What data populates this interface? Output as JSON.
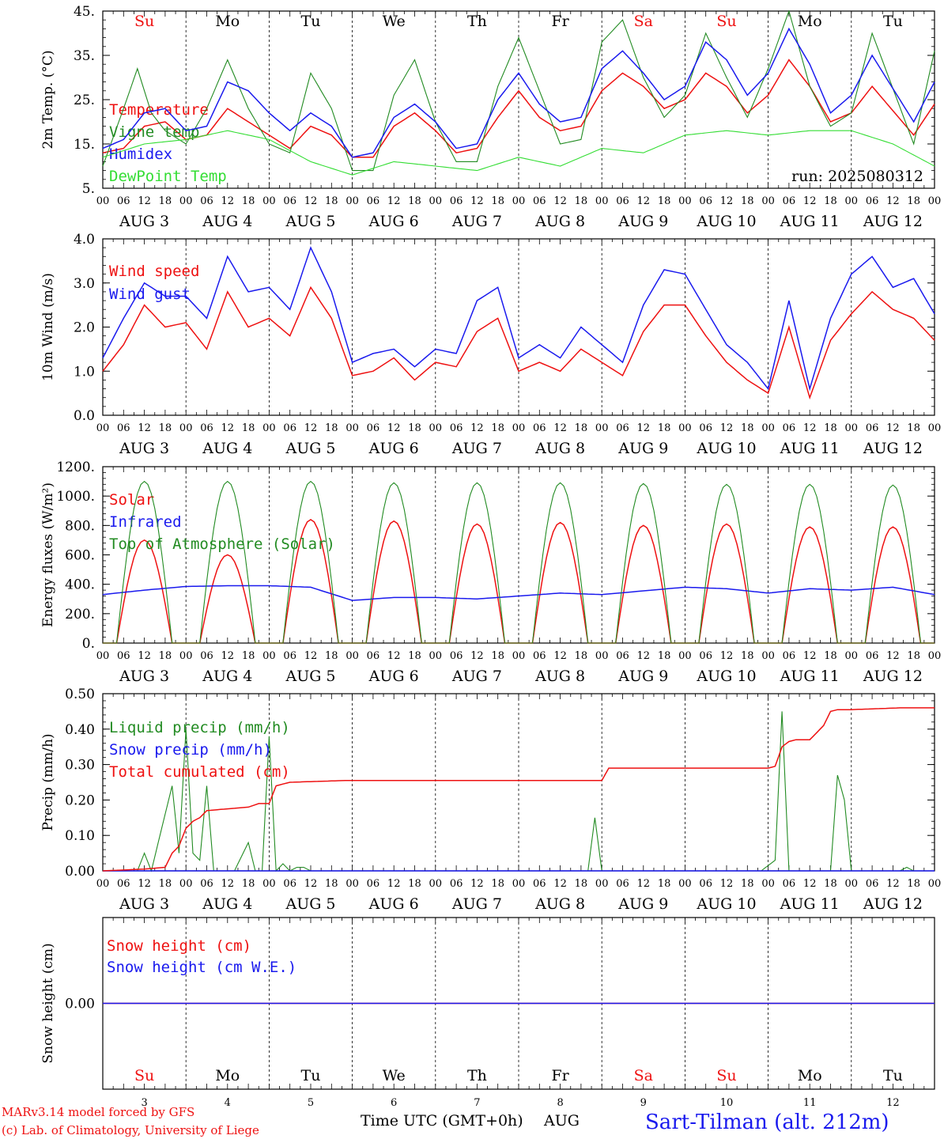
{
  "footer": {
    "model_line": "MARv3.14 model forced by GFS",
    "lab_line": "(c) Lab. of Climatology, University of Liege",
    "time_axis_label": "Time UTC (GMT+0h)",
    "month_label": "AUG",
    "station": "Sart-Tilman (alt. 212m)"
  },
  "colors": {
    "red": "#ee1111",
    "green": "#228b22",
    "blue": "#1a1aee",
    "lightgreen": "#33dd33",
    "black": "#000000"
  },
  "days": {
    "weekday": [
      "Su",
      "Mo",
      "Tu",
      "We",
      "Th",
      "Fr",
      "Sa",
      "Su",
      "Mo",
      "Tu"
    ],
    "weekend_flags": [
      true,
      false,
      false,
      false,
      false,
      false,
      true,
      true,
      false,
      false
    ],
    "date_labels": [
      "AUG  3",
      "AUG  4",
      "AUG  5",
      "AUG  6",
      "AUG  7",
      "AUG  8",
      "AUG  9",
      "AUG 10",
      "AUG 11",
      "AUG 12"
    ],
    "day_numbers": [
      "3",
      "4",
      "5",
      "6",
      "7",
      "8",
      "9",
      "10",
      "11",
      "12"
    ],
    "hour_ticks": [
      "00",
      "06",
      "12",
      "18"
    ]
  },
  "chart_data": [
    {
      "type": "line",
      "ylabel": "2m Temp. (°C)",
      "ylim": [
        5,
        45
      ],
      "yticks": [
        "5.",
        "15.",
        "25.",
        "35.",
        "45."
      ],
      "annotation": "run: 2025080312",
      "x_unit": "hours since AUG 3 00 UTC",
      "series": [
        {
          "name": "Temperature",
          "color": "red",
          "x": [
            0,
            6,
            12,
            18,
            24,
            30,
            36,
            42,
            48,
            54,
            60,
            66,
            72,
            78,
            84,
            90,
            96,
            102,
            108,
            114,
            120,
            126,
            132,
            138,
            144,
            150,
            156,
            162,
            168,
            174,
            180,
            186,
            192,
            198,
            204,
            210,
            216,
            222,
            234,
            240
          ],
          "values": [
            13,
            14,
            19,
            20,
            16,
            17,
            23,
            20,
            17,
            14,
            19,
            17,
            12,
            12,
            19,
            22,
            18,
            13,
            14,
            21,
            27,
            21,
            18,
            19,
            27,
            31,
            28,
            23,
            25,
            31,
            28,
            22,
            26,
            34,
            28,
            20,
            22,
            28,
            17,
            24
          ]
        },
        {
          "name": "Vigne temp",
          "color": "green",
          "x": [
            0,
            6,
            10,
            14,
            18,
            24,
            30,
            36,
            42,
            48,
            54,
            60,
            66,
            72,
            78,
            84,
            90,
            96,
            102,
            108,
            114,
            120,
            126,
            132,
            138,
            144,
            150,
            156,
            162,
            168,
            174,
            180,
            186,
            192,
            198,
            204,
            210,
            216,
            222,
            234,
            240
          ],
          "values": [
            10,
            23,
            32,
            22,
            18,
            15,
            23,
            34,
            23,
            15,
            13,
            31,
            23,
            9,
            9,
            26,
            34,
            20,
            11,
            11,
            28,
            39,
            27,
            15,
            16,
            38,
            43,
            30,
            21,
            26,
            40,
            30,
            21,
            32,
            45,
            28,
            19,
            22,
            40,
            15,
            36
          ]
        },
        {
          "name": "Humidex",
          "color": "blue",
          "x": [
            0,
            6,
            12,
            18,
            24,
            30,
            36,
            42,
            48,
            54,
            60,
            66,
            72,
            78,
            84,
            90,
            96,
            102,
            108,
            114,
            120,
            126,
            132,
            138,
            144,
            150,
            156,
            162,
            168,
            174,
            180,
            186,
            192,
            198,
            204,
            210,
            216,
            222,
            234,
            240
          ],
          "values": [
            14,
            16,
            22,
            23,
            18,
            19,
            29,
            27,
            22,
            18,
            22,
            19,
            12,
            13,
            21,
            24,
            20,
            14,
            15,
            25,
            31,
            24,
            20,
            21,
            32,
            36,
            31,
            25,
            28,
            38,
            34,
            26,
            31,
            41,
            33,
            22,
            26,
            35,
            20,
            29
          ]
        },
        {
          "name": "DewPoint Temp",
          "color": "lightgreen",
          "x": [
            0,
            12,
            24,
            36,
            48,
            60,
            72,
            84,
            96,
            108,
            120,
            132,
            144,
            156,
            168,
            180,
            192,
            204,
            216,
            228,
            240
          ],
          "values": [
            12,
            15,
            16,
            18,
            16,
            11,
            8,
            11,
            10,
            9,
            12,
            10,
            14,
            13,
            17,
            18,
            17,
            18,
            18,
            15,
            10
          ]
        }
      ]
    },
    {
      "type": "line",
      "ylabel": "10m Wind (m/s)",
      "ylim": [
        0,
        4
      ],
      "yticks": [
        "0.0",
        "1.0",
        "2.0",
        "3.0",
        "4.0"
      ],
      "x_unit": "hours since AUG 3 00 UTC",
      "series": [
        {
          "name": "Wind speed",
          "color": "red",
          "x": [
            0,
            6,
            12,
            18,
            24,
            30,
            36,
            42,
            48,
            54,
            60,
            66,
            72,
            78,
            84,
            90,
            96,
            102,
            108,
            114,
            120,
            126,
            132,
            138,
            144,
            150,
            156,
            162,
            168,
            174,
            180,
            186,
            192,
            198,
            204,
            210,
            216,
            222,
            228,
            234,
            240
          ],
          "values": [
            1.0,
            1.6,
            2.5,
            2.0,
            2.1,
            1.5,
            2.8,
            2.0,
            2.2,
            1.8,
            2.9,
            2.2,
            0.9,
            1.0,
            1.3,
            0.8,
            1.2,
            1.1,
            1.9,
            2.2,
            1.0,
            1.2,
            1.0,
            1.5,
            1.2,
            0.9,
            1.9,
            2.5,
            2.5,
            1.8,
            1.2,
            0.8,
            0.5,
            2.0,
            0.4,
            1.7,
            2.3,
            2.8,
            2.4,
            2.2,
            1.7
          ]
        },
        {
          "name": "Wind gust",
          "color": "blue",
          "x": [
            0,
            6,
            12,
            18,
            24,
            30,
            36,
            42,
            48,
            54,
            60,
            66,
            72,
            78,
            84,
            90,
            96,
            102,
            108,
            114,
            120,
            126,
            132,
            138,
            144,
            150,
            156,
            162,
            168,
            174,
            180,
            186,
            192,
            198,
            204,
            210,
            216,
            222,
            228,
            234,
            240
          ],
          "values": [
            1.3,
            2.2,
            3.0,
            2.7,
            2.7,
            2.2,
            3.6,
            2.8,
            2.9,
            2.4,
            3.8,
            2.8,
            1.2,
            1.4,
            1.5,
            1.1,
            1.5,
            1.4,
            2.6,
            2.9,
            1.3,
            1.6,
            1.3,
            2.0,
            1.6,
            1.2,
            2.5,
            3.3,
            3.2,
            2.4,
            1.6,
            1.2,
            0.6,
            2.6,
            0.6,
            2.2,
            3.2,
            3.6,
            2.9,
            3.1,
            2.3
          ]
        }
      ]
    },
    {
      "type": "line",
      "ylabel": "Energy fluxes (W/m²)",
      "ylim": [
        0,
        1200
      ],
      "yticks": [
        "0.",
        "200.",
        "400.",
        "600.",
        "800.",
        "1000.",
        "1200."
      ],
      "x_unit": "hours since AUG 3 00 UTC",
      "day_cycle": {
        "sunrise_hour": 4,
        "sunset_hour": 20
      },
      "series": [
        {
          "name": "Solar",
          "color": "red",
          "daily_peak": [
            700,
            600,
            840,
            830,
            810,
            820,
            800,
            810,
            790,
            790
          ]
        },
        {
          "name": "Infrared",
          "color": "blue",
          "x": [
            0,
            12,
            24,
            36,
            48,
            60,
            72,
            84,
            96,
            108,
            120,
            132,
            144,
            156,
            168,
            180,
            192,
            204,
            216,
            228,
            240
          ],
          "values": [
            330,
            360,
            385,
            390,
            390,
            380,
            290,
            310,
            310,
            300,
            320,
            340,
            330,
            355,
            380,
            370,
            340,
            370,
            360,
            380,
            330
          ]
        },
        {
          "name": "Top of Atmosphere (Solar)",
          "color": "green",
          "daily_peak": [
            1100,
            1100,
            1100,
            1090,
            1090,
            1090,
            1085,
            1080,
            1080,
            1075
          ]
        }
      ]
    },
    {
      "type": "line",
      "ylabel": "Precip (mm/h)",
      "ylim": [
        0,
        0.5
      ],
      "yticks": [
        "0.00",
        "0.10",
        "0.20",
        "0.30",
        "0.40",
        "0.50"
      ],
      "x_unit": "hours since AUG 3 00 UTC",
      "series": [
        {
          "name": "Liquid precip (mm/h)",
          "color": "green",
          "x": [
            0,
            10,
            12,
            14,
            20,
            22,
            24,
            26,
            28,
            30,
            32,
            34,
            36,
            38,
            42,
            44,
            46,
            48,
            50,
            52,
            54,
            56,
            58,
            60,
            62,
            100,
            140,
            142,
            144,
            146,
            148,
            190,
            194,
            196,
            198,
            200,
            210,
            212,
            214,
            216,
            218,
            230,
            232,
            234,
            240
          ],
          "values": [
            0,
            0,
            0.05,
            0,
            0.24,
            0.05,
            0.4,
            0.05,
            0.03,
            0.24,
            0,
            0,
            0,
            0,
            0.08,
            0,
            0,
            0.38,
            0,
            0.02,
            0,
            0.01,
            0.01,
            0,
            0,
            0,
            0,
            0.15,
            0,
            0,
            0,
            0,
            0.03,
            0.45,
            0,
            0,
            0,
            0.27,
            0.2,
            0,
            0,
            0,
            0.01,
            0,
            0
          ]
        },
        {
          "name": "Snow precip (mm/h)",
          "color": "blue",
          "x": [
            0,
            240
          ],
          "values": [
            0,
            0
          ]
        },
        {
          "name": "Total cumulated (cm)",
          "color": "red",
          "x": [
            0,
            12,
            18,
            20,
            22,
            24,
            26,
            28,
            30,
            36,
            42,
            45,
            48,
            50,
            54,
            70,
            110,
            144,
            146,
            192,
            194,
            196,
            198,
            200,
            204,
            208,
            210,
            212,
            216,
            230,
            240
          ],
          "values": [
            0,
            0.005,
            0.01,
            0.05,
            0.07,
            0.12,
            0.14,
            0.15,
            0.17,
            0.175,
            0.18,
            0.19,
            0.19,
            0.24,
            0.25,
            0.255,
            0.255,
            0.255,
            0.29,
            0.29,
            0.295,
            0.35,
            0.365,
            0.37,
            0.37,
            0.41,
            0.45,
            0.455,
            0.455,
            0.46,
            0.46
          ]
        }
      ]
    },
    {
      "type": "line",
      "ylabel": "Snow height (cm)",
      "ylim": [
        -1,
        1
      ],
      "yticks": [
        "0.00"
      ],
      "x_unit": "hours since AUG 3 00 UTC",
      "series": [
        {
          "name": "Snow height (cm)",
          "color": "red",
          "x": [
            0,
            240
          ],
          "values": [
            0,
            0
          ]
        },
        {
          "name": "Snow height (cm W.E.)",
          "color": "blue",
          "x": [
            0,
            240
          ],
          "values": [
            0,
            0
          ]
        }
      ]
    }
  ]
}
